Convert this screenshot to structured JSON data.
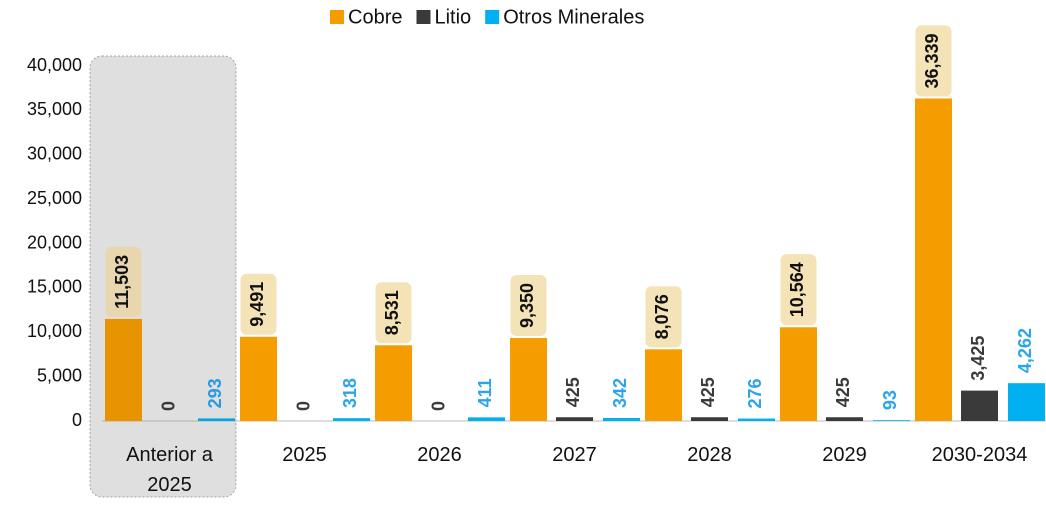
{
  "chart_data": {
    "type": "bar",
    "categories": [
      "Anterior a 2025",
      "2025",
      "2026",
      "2027",
      "2028",
      "2029",
      "2030-2034"
    ],
    "series": [
      {
        "name": "Cobre",
        "color": "#f59c00",
        "values": [
          11503,
          9491,
          8531,
          9350,
          8076,
          10564,
          36339
        ],
        "value_labels": [
          "11,503",
          "9,491",
          "8,531",
          "9,350",
          "8,076",
          "10,564",
          "36,339"
        ]
      },
      {
        "name": "Litio",
        "color": "#3a3a3a",
        "values": [
          0,
          0,
          0,
          425,
          425,
          425,
          3425
        ],
        "value_labels": [
          "0",
          "0",
          "0",
          "425",
          "425",
          "425",
          "3,425"
        ]
      },
      {
        "name": "Otros Minerales",
        "color": "#00b0f0",
        "values": [
          293,
          318,
          411,
          342,
          276,
          93,
          4262
        ],
        "value_labels": [
          "293",
          "318",
          "411",
          "342",
          "276",
          "93",
          "4,262"
        ]
      }
    ],
    "ylim": [
      0,
      40000
    ],
    "yticks": [
      0,
      {
        "value": 5000,
        "label": "5,000"
      },
      {
        "value": 10000,
        "label": "10,000"
      },
      {
        "value": 15000,
        "label": "15,000"
      },
      {
        "value": 20000,
        "label": "20,000"
      },
      {
        "value": 25000,
        "label": "25,000"
      },
      {
        "value": 30000,
        "label": "30,000"
      },
      {
        "value": 35000,
        "label": "35,000"
      },
      {
        "value": 40000,
        "label": "40,000"
      }
    ],
    "grid": false,
    "legend": "top"
  }
}
